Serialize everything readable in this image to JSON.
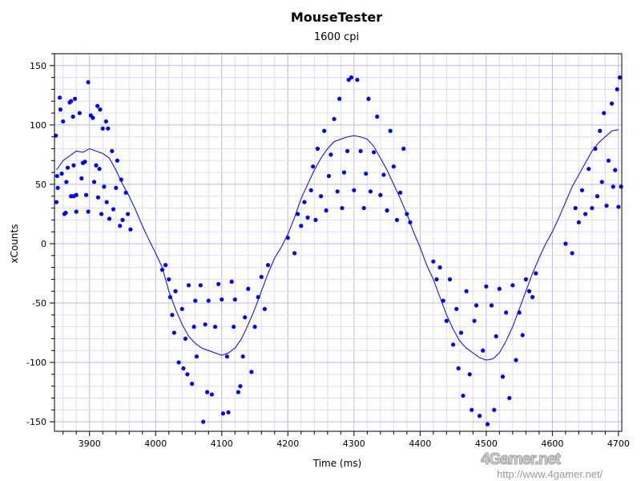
{
  "chart_data": {
    "type": "scatter",
    "title": "MouseTester",
    "subtitle": "1600 cpi",
    "xlabel": "Time (ms)",
    "ylabel": "xCounts",
    "xlim": [
      3847,
      4705
    ],
    "ylim": [
      -158,
      160
    ],
    "xticks": [
      3900,
      4000,
      4100,
      4200,
      4300,
      4400,
      4500,
      4600,
      4700
    ],
    "yticks": [
      150,
      100,
      50,
      0,
      -50,
      -100,
      -150
    ],
    "grid": true,
    "color": "#0000ff",
    "line": {
      "x": [
        3850,
        3860,
        3870,
        3880,
        3890,
        3900,
        3910,
        3920,
        3930,
        3940,
        3950,
        3960,
        3970,
        3980,
        3990,
        4000,
        4010,
        4020,
        4030,
        4040,
        4050,
        4060,
        4070,
        4080,
        4090,
        4100,
        4110,
        4120,
        4130,
        4140,
        4150,
        4160,
        4170,
        4180,
        4190,
        4200,
        4210,
        4220,
        4230,
        4240,
        4250,
        4260,
        4270,
        4280,
        4290,
        4300,
        4310,
        4320,
        4330,
        4340,
        4350,
        4360,
        4370,
        4380,
        4390,
        4400,
        4410,
        4420,
        4430,
        4440,
        4450,
        4460,
        4470,
        4480,
        4490,
        4500,
        4510,
        4520,
        4530,
        4540,
        4550,
        4560,
        4570,
        4580,
        4590,
        4600,
        4610,
        4620,
        4630,
        4640,
        4650,
        4660,
        4670,
        4680,
        4690,
        4700
      ],
      "y": [
        62,
        70,
        74,
        78,
        77,
        80,
        78,
        76,
        72,
        62,
        50,
        40,
        28,
        15,
        3,
        -8,
        -20,
        -40,
        -55,
        -68,
        -78,
        -84,
        -88,
        -90,
        -92,
        -94,
        -92,
        -88,
        -80,
        -68,
        -55,
        -40,
        -25,
        -12,
        -3,
        8,
        22,
        38,
        50,
        62,
        72,
        80,
        86,
        88,
        90,
        91,
        90,
        88,
        82,
        72,
        62,
        50,
        38,
        25,
        10,
        -3,
        -18,
        -30,
        -45,
        -60,
        -72,
        -82,
        -88,
        -92,
        -96,
        -98,
        -97,
        -92,
        -82,
        -70,
        -55,
        -40,
        -25,
        -12,
        0,
        10,
        22,
        35,
        48,
        58,
        68,
        78,
        85,
        90,
        95,
        96
      ]
    },
    "points": [
      [
        3849,
        91
      ],
      [
        3850,
        35
      ],
      [
        3851,
        57
      ],
      [
        3852,
        47
      ],
      [
        3855,
        123
      ],
      [
        3856,
        113
      ],
      [
        3860,
        103
      ],
      [
        3858,
        59
      ],
      [
        3862,
        25
      ],
      [
        3864,
        26
      ],
      [
        3865,
        52
      ],
      [
        3867,
        64
      ],
      [
        3870,
        119
      ],
      [
        3872,
        120
      ],
      [
        3875,
        107
      ],
      [
        3878,
        122
      ],
      [
        3876,
        66
      ],
      [
        3872,
        40
      ],
      [
        3876,
        40
      ],
      [
        3880,
        41
      ],
      [
        3880,
        27
      ],
      [
        3885,
        110
      ],
      [
        3888,
        55
      ],
      [
        3890,
        68
      ],
      [
        3893,
        69
      ],
      [
        3895,
        41
      ],
      [
        3898,
        136
      ],
      [
        3898,
        27
      ],
      [
        3902,
        108
      ],
      [
        3905,
        106
      ],
      [
        3907,
        52
      ],
      [
        3910,
        66
      ],
      [
        3912,
        116
      ],
      [
        3913,
        39
      ],
      [
        3915,
        63
      ],
      [
        3916,
        113
      ],
      [
        3918,
        25
      ],
      [
        3920,
        97
      ],
      [
        3922,
        48
      ],
      [
        3925,
        103
      ],
      [
        3926,
        35
      ],
      [
        3928,
        97
      ],
      [
        3930,
        21
      ],
      [
        3934,
        78
      ],
      [
        3936,
        29
      ],
      [
        3940,
        47
      ],
      [
        3942,
        70
      ],
      [
        3946,
        15
      ],
      [
        3948,
        54
      ],
      [
        3950,
        20
      ],
      [
        3955,
        43
      ],
      [
        3958,
        25
      ],
      [
        3962,
        12
      ],
      [
        4010,
        -22
      ],
      [
        4015,
        -18
      ],
      [
        4020,
        -30
      ],
      [
        4022,
        -45
      ],
      [
        4025,
        -60
      ],
      [
        4028,
        -75
      ],
      [
        4030,
        -40
      ],
      [
        4035,
        -100
      ],
      [
        4040,
        -55
      ],
      [
        4042,
        -105
      ],
      [
        4045,
        -80
      ],
      [
        4048,
        -110
      ],
      [
        4050,
        -35
      ],
      [
        4055,
        -118
      ],
      [
        4058,
        -70
      ],
      [
        4060,
        -48
      ],
      [
        4062,
        -95
      ],
      [
        4068,
        -35
      ],
      [
        4072,
        -150
      ],
      [
        4075,
        -68
      ],
      [
        4078,
        -125
      ],
      [
        4080,
        -48
      ],
      [
        4085,
        -127
      ],
      [
        4090,
        -70
      ],
      [
        4095,
        -34
      ],
      [
        4100,
        -47
      ],
      [
        4102,
        -143
      ],
      [
        4108,
        -95
      ],
      [
        4110,
        -142
      ],
      [
        4115,
        -32
      ],
      [
        4118,
        -70
      ],
      [
        4120,
        -47
      ],
      [
        4125,
        -125
      ],
      [
        4128,
        -120
      ],
      [
        4132,
        -95
      ],
      [
        4135,
        -62
      ],
      [
        4140,
        -38
      ],
      [
        4145,
        -108
      ],
      [
        4150,
        -70
      ],
      [
        4155,
        -45
      ],
      [
        4160,
        -28
      ],
      [
        4165,
        -55
      ],
      [
        4170,
        -18
      ],
      [
        4200,
        5
      ],
      [
        4210,
        -8
      ],
      [
        4215,
        25
      ],
      [
        4220,
        15
      ],
      [
        4225,
        35
      ],
      [
        4230,
        22
      ],
      [
        4235,
        45
      ],
      [
        4238,
        65
      ],
      [
        4242,
        20
      ],
      [
        4245,
        80
      ],
      [
        4250,
        40
      ],
      [
        4255,
        95
      ],
      [
        4258,
        28
      ],
      [
        4262,
        57
      ],
      [
        4265,
        75
      ],
      [
        4270,
        105
      ],
      [
        4275,
        44
      ],
      [
        4278,
        122
      ],
      [
        4282,
        30
      ],
      [
        4285,
        60
      ],
      [
        4290,
        78
      ],
      [
        4292,
        138
      ],
      [
        4296,
        140
      ],
      [
        4300,
        45
      ],
      [
        4305,
        138
      ],
      [
        4310,
        78
      ],
      [
        4315,
        30
      ],
      [
        4318,
        59
      ],
      [
        4322,
        122
      ],
      [
        4325,
        44
      ],
      [
        4330,
        77
      ],
      [
        4335,
        107
      ],
      [
        4340,
        41
      ],
      [
        4345,
        58
      ],
      [
        4350,
        28
      ],
      [
        4355,
        95
      ],
      [
        4360,
        65
      ],
      [
        4365,
        20
      ],
      [
        4370,
        43
      ],
      [
        4375,
        80
      ],
      [
        4380,
        25
      ],
      [
        4385,
        18
      ],
      [
        4420,
        -15
      ],
      [
        4425,
        -30
      ],
      [
        4430,
        -20
      ],
      [
        4435,
        -48
      ],
      [
        4440,
        -65
      ],
      [
        4445,
        -30
      ],
      [
        4450,
        -85
      ],
      [
        4455,
        -55
      ],
      [
        4458,
        -105
      ],
      [
        4462,
        -75
      ],
      [
        4465,
        -128
      ],
      [
        4470,
        -40
      ],
      [
        4475,
        -110
      ],
      [
        4478,
        -140
      ],
      [
        4482,
        -65
      ],
      [
        4485,
        -52
      ],
      [
        4490,
        -145
      ],
      [
        4495,
        -90
      ],
      [
        4500,
        -36
      ],
      [
        4502,
        -152
      ],
      [
        4508,
        -52
      ],
      [
        4512,
        -140
      ],
      [
        4515,
        -78
      ],
      [
        4520,
        -38
      ],
      [
        4525,
        -112
      ],
      [
        4530,
        -58
      ],
      [
        4535,
        -130
      ],
      [
        4540,
        -35
      ],
      [
        4545,
        -98
      ],
      [
        4550,
        -58
      ],
      [
        4555,
        -77
      ],
      [
        4560,
        -30
      ],
      [
        4565,
        -40
      ],
      [
        4570,
        -45
      ],
      [
        4575,
        -25
      ],
      [
        4620,
        0
      ],
      [
        4630,
        -8
      ],
      [
        4635,
        30
      ],
      [
        4640,
        18
      ],
      [
        4645,
        45
      ],
      [
        4650,
        25
      ],
      [
        4655,
        63
      ],
      [
        4660,
        30
      ],
      [
        4665,
        80
      ],
      [
        4668,
        40
      ],
      [
        4672,
        95
      ],
      [
        4675,
        52
      ],
      [
        4678,
        110
      ],
      [
        4682,
        32
      ],
      [
        4685,
        70
      ],
      [
        4690,
        118
      ],
      [
        4692,
        48
      ],
      [
        4695,
        62
      ],
      [
        4698,
        130
      ],
      [
        4700,
        31
      ],
      [
        4702,
        140
      ],
      [
        4704,
        48
      ]
    ]
  },
  "watermark": {
    "logo": "4Gamer.net",
    "url": "http://www.4gamer.net/"
  }
}
